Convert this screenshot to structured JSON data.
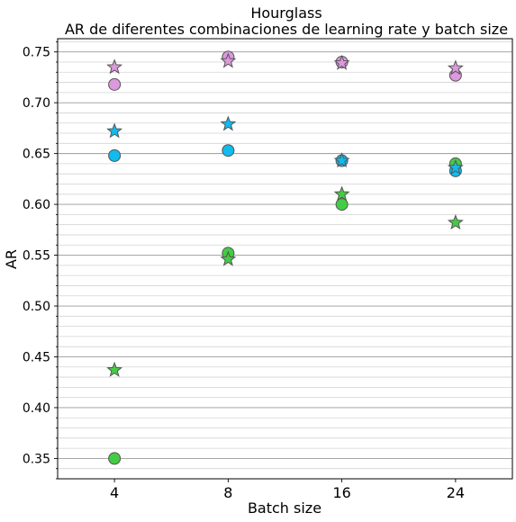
{
  "chart_data": {
    "type": "scatter",
    "title": "Hourglass",
    "subtitle": "AR de diferentes combinaciones de learning rate y batch size",
    "xlabel": "Batch size",
    "ylabel": "AR",
    "categories": [
      "4",
      "8",
      "16",
      "24"
    ],
    "xlim": [
      -0.5,
      3.5
    ],
    "ylim": [
      0.33,
      0.763
    ],
    "yticks": [
      0.35,
      0.4,
      0.45,
      0.5,
      0.55,
      0.6,
      0.65,
      0.7,
      0.75
    ],
    "ytick_labels": [
      "0.35",
      "0.40",
      "0.45",
      "0.50",
      "0.55",
      "0.60",
      "0.65",
      "0.70",
      "0.75"
    ],
    "grid": {
      "major": "on",
      "minor": "on",
      "axis": "y"
    },
    "series": [
      {
        "color": "#dd99dd",
        "marker": "circle",
        "values": [
          0.718,
          0.745,
          0.74,
          0.727
        ]
      },
      {
        "color": "#dd99dd",
        "marker": "star",
        "values": [
          0.735,
          0.741,
          0.739,
          0.734
        ]
      },
      {
        "color": "#11bbee",
        "marker": "circle",
        "values": [
          0.648,
          0.653,
          0.643,
          0.633
        ]
      },
      {
        "color": "#11bbee",
        "marker": "star",
        "values": [
          0.672,
          0.679,
          0.643,
          0.636
        ]
      },
      {
        "color": "#44cc44",
        "marker": "circle",
        "values": [
          0.35,
          0.552,
          0.6,
          0.64
        ]
      },
      {
        "color": "#44cc44",
        "marker": "star",
        "values": [
          0.437,
          0.546,
          0.61,
          0.582
        ]
      }
    ]
  }
}
